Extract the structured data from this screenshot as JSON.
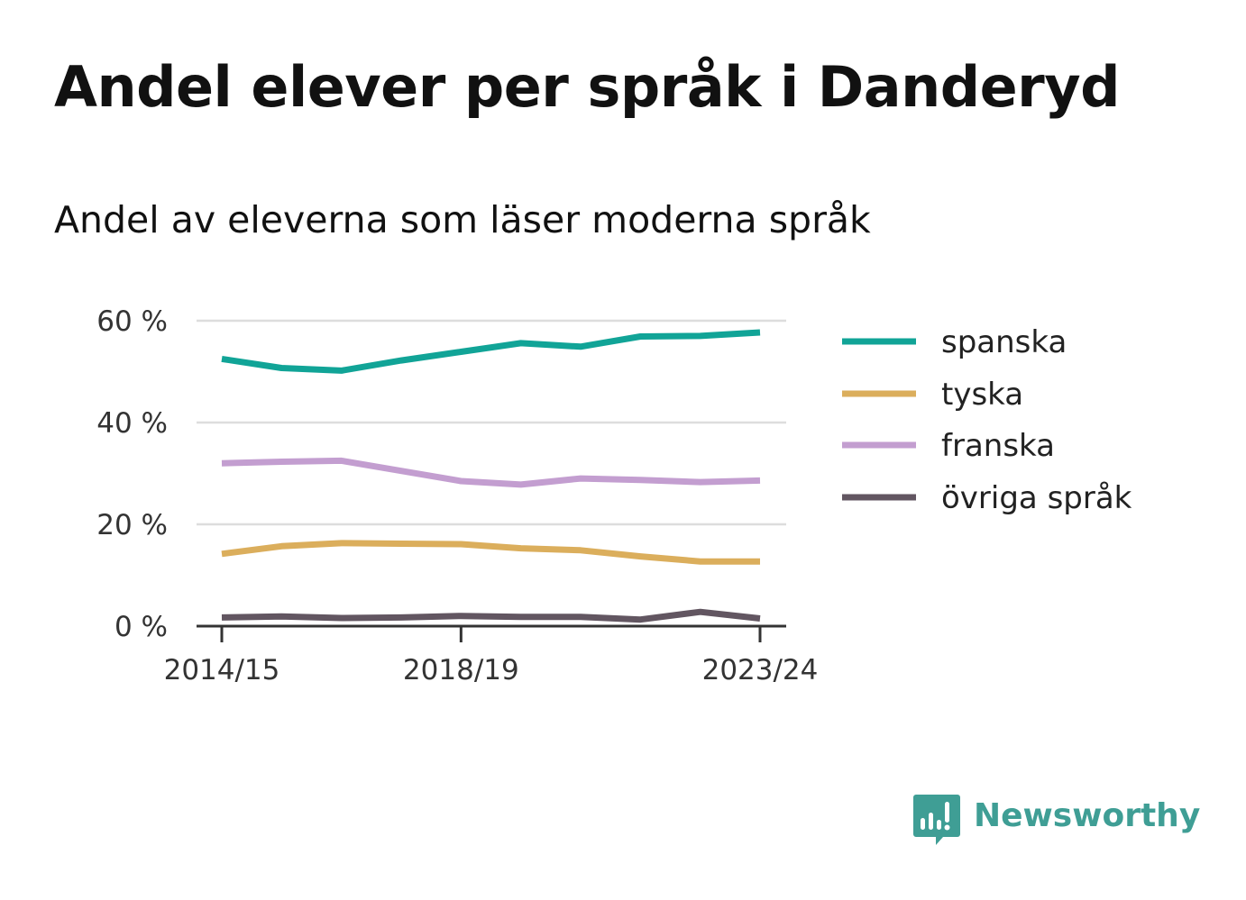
{
  "header": {
    "title": "Andel elever per språk i Danderyd",
    "subtitle": "Andel av eleverna som läser moderna språk"
  },
  "chart_data": {
    "type": "line",
    "x": [
      "2014/15",
      "2015/16",
      "2016/17",
      "2017/18",
      "2018/19",
      "2019/20",
      "2020/21",
      "2021/22",
      "2022/23",
      "2023/24"
    ],
    "x_tick_labels": [
      "2014/15",
      "2018/19",
      "2023/24"
    ],
    "y_tick_labels": [
      "0 %",
      "20 %",
      "40 %",
      "60 %"
    ],
    "y_ticks": [
      0,
      20,
      40,
      60
    ],
    "ylim": [
      0,
      60
    ],
    "grid": true,
    "legend_position": "right",
    "series": [
      {
        "name": "spanska",
        "color": "#11a497",
        "values": [
          52.5,
          50.7,
          50.2,
          52.2,
          53.9,
          55.6,
          54.9,
          56.9,
          57.0,
          57.7
        ]
      },
      {
        "name": "tyska",
        "color": "#dbae5c",
        "values": [
          14.2,
          15.7,
          16.3,
          16.2,
          16.1,
          15.3,
          14.9,
          13.7,
          12.7,
          12.7
        ]
      },
      {
        "name": "franska",
        "color": "#c39ed0",
        "values": [
          32.0,
          32.3,
          32.5,
          30.5,
          28.5,
          27.8,
          29.0,
          28.7,
          28.3,
          28.6
        ]
      },
      {
        "name": "övriga språk",
        "color": "#625661",
        "values": [
          1.7,
          1.9,
          1.6,
          1.7,
          2.0,
          1.8,
          1.8,
          1.3,
          2.8,
          1.5
        ]
      }
    ]
  },
  "brand": {
    "name": "Newsworthy",
    "logo_icon": "newsworthy-logo-icon",
    "color": "#3f9e95"
  }
}
